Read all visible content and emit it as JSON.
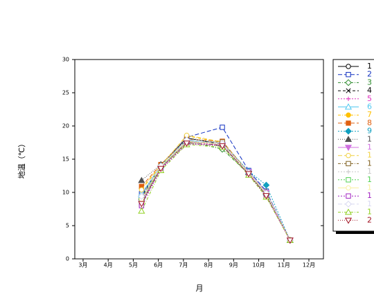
{
  "chart_data": {
    "type": "line",
    "y_label": "地温（℃）",
    "x_label": "月",
    "x": [
      5.33,
      6.1,
      7.13,
      8.55,
      9.6,
      10.3,
      11.25
    ],
    "xlim": [
      2.67,
      12.58
    ],
    "xticks": [
      {
        "value": 3,
        "label": "3月"
      },
      {
        "value": 4,
        "label": "4月"
      },
      {
        "value": 5,
        "label": "5月"
      },
      {
        "value": 6,
        "label": "6月"
      },
      {
        "value": 7,
        "label": "7月"
      },
      {
        "value": 8,
        "label": "8月"
      },
      {
        "value": 9,
        "label": "9月"
      },
      {
        "value": 10,
        "label": "10月"
      },
      {
        "value": 11,
        "label": "11月"
      },
      {
        "value": 12,
        "label": "12月"
      }
    ],
    "ylim": [
      0,
      30
    ],
    "yticks": [
      0,
      5,
      10,
      15,
      20,
      25,
      30
    ],
    "series": [
      {
        "name": "1",
        "color": "#000000",
        "marker": "circle",
        "dash": "",
        "values": [
          9.5,
          14,
          18.2,
          17.2,
          13,
          10,
          2.8
        ]
      },
      {
        "name": "2",
        "color": "#1030c0",
        "marker": "square",
        "dash": "6 3",
        "values": [
          9.8,
          14,
          18.3,
          19.8,
          13.3,
          10.2,
          2.8
        ]
      },
      {
        "name": "3",
        "color": "#2a8a2a",
        "marker": "diamond",
        "dash": "4 2 1 2",
        "values": [
          9,
          13.8,
          17.8,
          16.5,
          12.8,
          9.6,
          2.8
        ]
      },
      {
        "name": "4",
        "color": "#000000",
        "marker": "x",
        "dash": "4 3",
        "values": [
          9.2,
          13.9,
          17.9,
          17,
          12.9,
          9.8,
          2.8
        ]
      },
      {
        "name": "5",
        "color": "#e030c0",
        "marker": "plus",
        "dash": "2 2",
        "values": [
          8.8,
          13.7,
          17.6,
          17.1,
          13,
          9.8,
          2.8
        ]
      },
      {
        "name": "6",
        "color": "#50c8f0",
        "marker": "triangle",
        "dash": "",
        "values": [
          9.8,
          14,
          17.8,
          17.2,
          13.2,
          10,
          2.8
        ]
      },
      {
        "name": "7",
        "color": "#ffc000",
        "marker": "circle-filled",
        "dash": "4 2 1 2",
        "values": [
          10.6,
          14.1,
          18.5,
          17.5,
          13.1,
          10,
          2.8
        ]
      },
      {
        "name": "8",
        "color": "#e06010",
        "marker": "square-filled",
        "dash": "6 3",
        "values": [
          10.9,
          14.2,
          18,
          17.7,
          13,
          9.9,
          2.8
        ]
      },
      {
        "name": "9",
        "color": "#10a0c0",
        "marker": "diamond-filled",
        "dash": "2 2",
        "values": [
          9.3,
          14,
          18,
          17.5,
          13.2,
          11.1,
          2.8
        ]
      },
      {
        "name": "1",
        "color": "#505050",
        "marker": "triangle-filled",
        "dash": "1 2",
        "values": [
          11.8,
          14.2,
          18.2,
          17.4,
          13,
          10.1,
          2.8
        ]
      },
      {
        "name": "1",
        "color": "#d070e0",
        "marker": "triangle-down-filled",
        "dash": "",
        "values": [
          8.5,
          13.6,
          17.7,
          17.2,
          13.1,
          10,
          2.8
        ]
      },
      {
        "name": "1",
        "color": "#f0d040",
        "marker": "circle",
        "dash": "6 3",
        "values": [
          10.4,
          14,
          18.6,
          17.6,
          13,
          9.9,
          2.8
        ]
      },
      {
        "name": "1",
        "color": "#806020",
        "marker": "square-x",
        "dash": "4 2 1 2",
        "values": [
          8.2,
          13.9,
          17.5,
          17.6,
          12.9,
          9.7,
          2.8
        ]
      },
      {
        "name": "1",
        "color": "#c8c8c8",
        "marker": "plus",
        "dash": "2 2",
        "values": [
          9.7,
          14,
          18,
          17.5,
          13,
          10,
          2.8
        ]
      },
      {
        "name": "1",
        "color": "#50d050",
        "marker": "square",
        "dash": "2 2",
        "values": [
          8.6,
          13.8,
          17.4,
          17,
          12.7,
          9.6,
          2.8
        ]
      },
      {
        "name": "1",
        "color": "#f8f0a0",
        "marker": "circle",
        "dash": "",
        "values": [
          9,
          13.9,
          17.7,
          17.2,
          12.9,
          9.8,
          2.8
        ]
      },
      {
        "name": "1",
        "color": "#a020c0",
        "marker": "square",
        "dash": "2 2",
        "values": [
          8,
          13.5,
          17.3,
          17.1,
          12.7,
          9.5,
          2.8
        ]
      },
      {
        "name": "1",
        "color": "#d8d8f0",
        "marker": "diamond",
        "dash": "6 3",
        "values": [
          9.4,
          14,
          17.9,
          17.3,
          13,
          9.9,
          2.8
        ]
      },
      {
        "name": "1",
        "color": "#90d020",
        "marker": "triangle",
        "dash": "4 2 1 2",
        "values": [
          7.2,
          13.3,
          17.2,
          16.8,
          12.6,
          9.3,
          2.8
        ]
      },
      {
        "name": "2",
        "color": "#a01020",
        "marker": "triangle-down",
        "dash": "1 2",
        "values": [
          8.3,
          13.6,
          17.4,
          17,
          12.8,
          9.5,
          2.8
        ]
      }
    ]
  }
}
